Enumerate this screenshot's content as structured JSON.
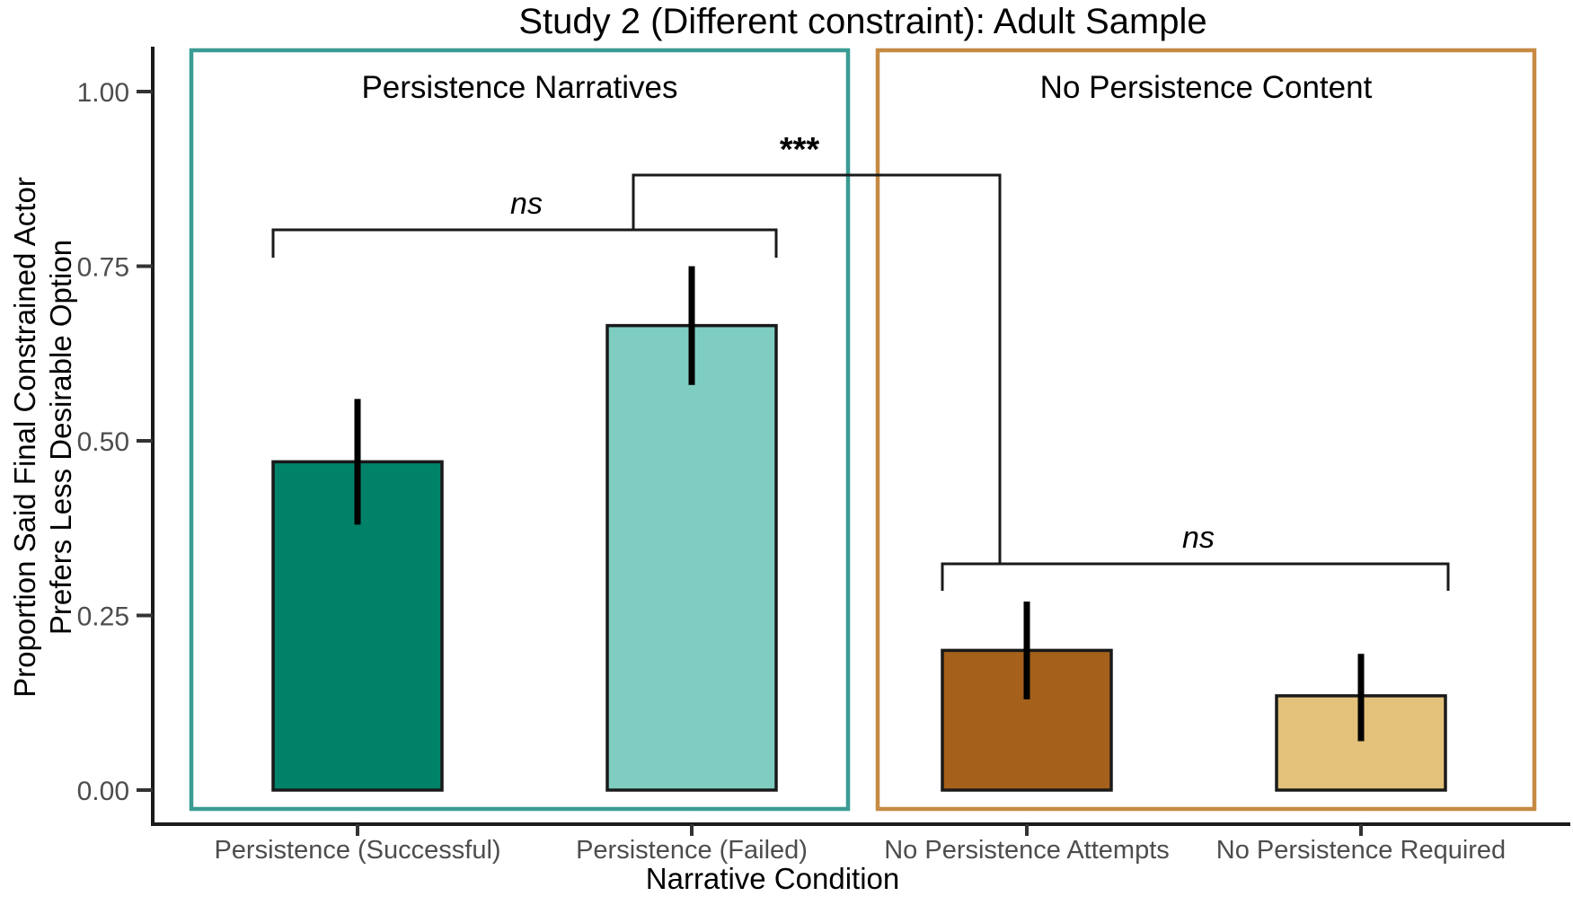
{
  "chart_data": {
    "type": "bar",
    "title": "Study 2 (Different constraint): Adult Sample",
    "xlabel": "Narrative Condition",
    "ylabel": "Proportion Said Final Constrained Actor\nPrefers Less Desirable Option",
    "ylim": [
      0,
      1.06
    ],
    "yticks": [
      0,
      0.25,
      0.5,
      0.75,
      1
    ],
    "ytick_labels": [
      "0.00",
      "0.25",
      "0.50",
      "0.75",
      "1.00"
    ],
    "categories": [
      "Persistence (Successful)",
      "Persistence (Failed)",
      "No Persistence Attempts",
      "No Persistence Required"
    ],
    "values": [
      0.47,
      0.665,
      0.2,
      0.135
    ],
    "error_low": [
      0.38,
      0.58,
      0.13,
      0.07
    ],
    "error_high": [
      0.56,
      0.75,
      0.27,
      0.195
    ],
    "bar_colors": [
      "#008269",
      "#7fcdc1",
      "#a5601b",
      "#e2c17b"
    ],
    "bar_outline_color": "#1a1a1a",
    "axis_color": "#1a1a1a",
    "tick_text_color": "#4d4d4d",
    "grid": "off",
    "legend": "none",
    "groups": [
      {
        "label": "Persistence Narratives",
        "box_color": "#3a9c94",
        "bars": [
          "Persistence (Successful)",
          "Persistence (Failed)"
        ]
      },
      {
        "label": "No Persistence Content",
        "box_color": "#c68a43",
        "bars": [
          "No Persistence Attempts",
          "No Persistence Required"
        ]
      }
    ],
    "significance": [
      {
        "label": "ns",
        "between": [
          "Persistence (Successful)",
          "Persistence (Failed)"
        ]
      },
      {
        "label": "***",
        "between": [
          "Persistence Narratives group",
          "No Persistence Content group"
        ]
      },
      {
        "label": "ns",
        "between": [
          "No Persistence Attempts",
          "No Persistence Required"
        ]
      }
    ]
  }
}
